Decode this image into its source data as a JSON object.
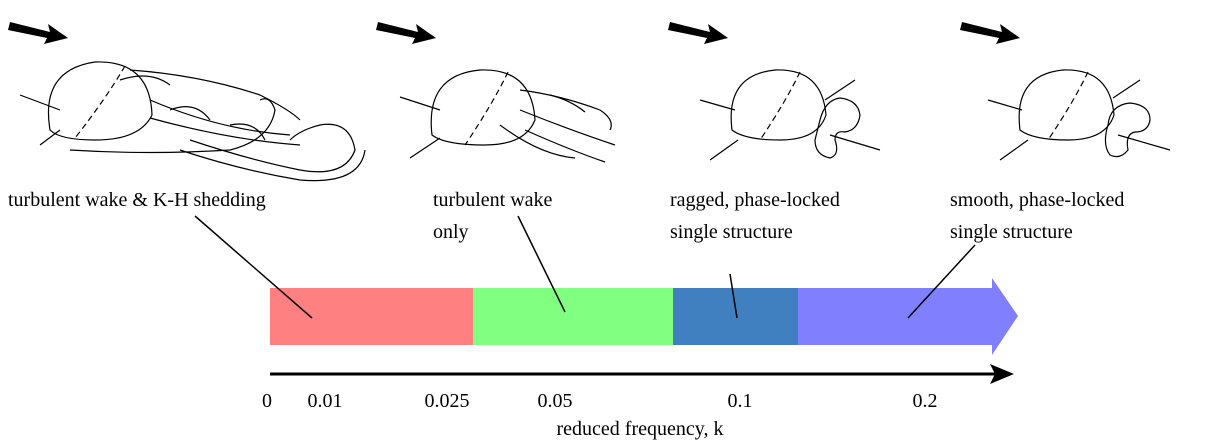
{
  "regions": [
    {
      "label_lines": [
        "turbulent wake & K-H shedding"
      ]
    },
    {
      "label_lines": [
        "turbulent wake",
        "only"
      ]
    },
    {
      "label_lines": [
        "ragged, phase-locked",
        "single structure"
      ]
    },
    {
      "label_lines": [
        "smooth, phase-locked",
        "single structure"
      ]
    }
  ],
  "axis": {
    "ticks": [
      "0",
      "0.01",
      "0.025",
      "0.05",
      "0.1",
      "0.2"
    ],
    "label": "reduced frequency, k"
  }
}
